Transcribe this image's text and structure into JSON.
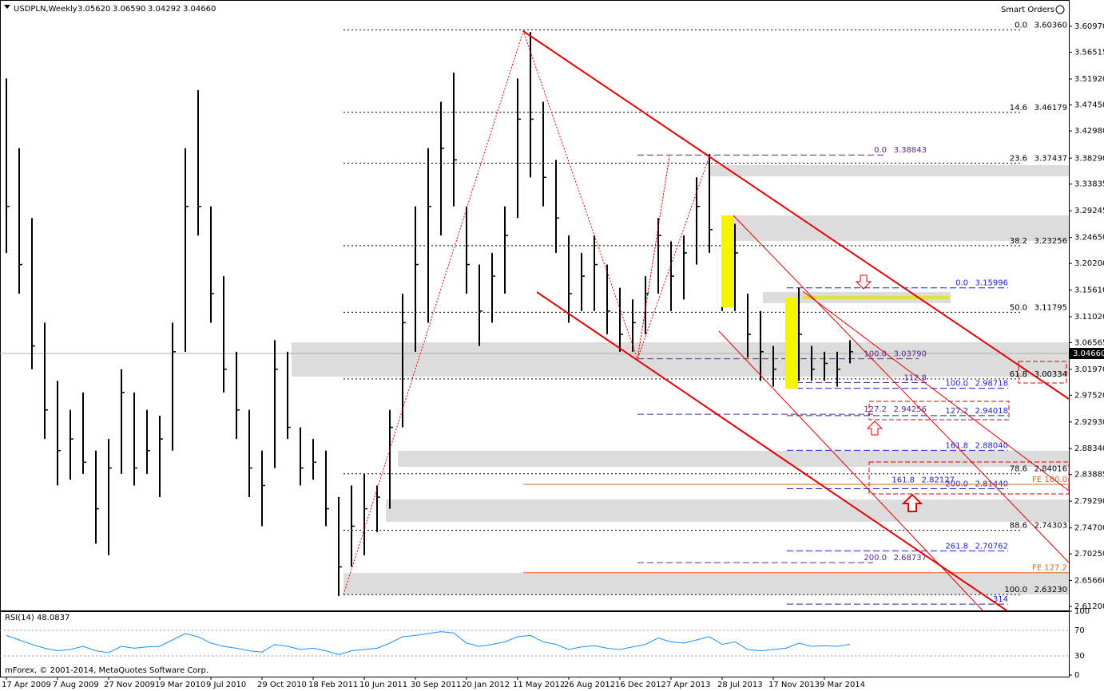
{
  "chart_data": {
    "type": "ohlc",
    "symbol": "USDPLN,Weekly",
    "ohlc_header": [
      {
        "value": 3.0562,
        "label": "3.05620"
      },
      {
        "value": 3.0659,
        "label": "3.06590"
      },
      3.04292,
      {
        "value": 3.0466,
        "label": "3.04660"
      }
    ],
    "smart_orders": "Smart Orders",
    "footer": "mForex, © 2001-2014, MetaQuotes Software Corp.",
    "last": {
      "value": 3.0466,
      "label": "3.04660"
    },
    "categories": [
      "17 Apr 2009",
      null,
      null,
      null,
      "7 Aug 2009",
      null,
      null,
      null,
      "27 Nov 2009",
      null,
      null,
      null,
      "19 Mar 2010",
      null,
      null,
      null,
      "9 Jul 2010",
      null,
      null,
      null,
      "29 Oct 2010",
      null,
      null,
      null,
      "18 Feb 2011",
      null,
      null,
      null,
      "10 Jun 2011",
      null,
      null,
      null,
      "30 Sep 2011",
      null,
      null,
      null,
      "20 Jan 2012",
      null,
      null,
      null,
      "11 May 2012",
      null,
      null,
      null,
      "26 Aug 2012",
      null,
      null,
      null,
      "16 Dec 2012",
      null,
      null,
      null,
      "7 Apr 2013",
      null,
      null,
      null,
      "28 Jul 2013",
      null,
      null,
      null,
      "17 Nov 2013",
      null,
      null,
      null,
      "9 Mar 2014",
      null,
      null
    ],
    "high": [
      3.52,
      3.4,
      3.28,
      3.1,
      3.0,
      2.95,
      2.98,
      2.88,
      2.9,
      3.02,
      2.98,
      2.95,
      2.94,
      3.1,
      3.4,
      3.5,
      3.3,
      3.18,
      3.05,
      2.95,
      2.88,
      3.07,
      3.05,
      2.92,
      2.9,
      2.88,
      2.8,
      2.82,
      2.84,
      2.82,
      2.95,
      3.15,
      3.3,
      3.4,
      3.48,
      3.53,
      3.3,
      3.2,
      3.22,
      3.3,
      3.52,
      3.6,
      3.48,
      3.38,
      3.25,
      3.22,
      3.25,
      3.2,
      3.16,
      3.14,
      3.18,
      3.28,
      3.24,
      3.25,
      3.35,
      3.39,
      3.25,
      3.27,
      3.15,
      3.12,
      3.06,
      3.06,
      3.16,
      3.06,
      3.05,
      3.05,
      3.07
    ],
    "low": [
      3.22,
      3.15,
      3.02,
      2.9,
      2.82,
      2.83,
      2.84,
      2.72,
      2.7,
      2.84,
      2.82,
      2.84,
      2.8,
      2.88,
      3.05,
      3.25,
      3.1,
      2.98,
      2.9,
      2.8,
      2.75,
      2.85,
      2.9,
      2.82,
      2.83,
      2.75,
      2.63,
      2.68,
      2.7,
      2.74,
      2.78,
      2.92,
      3.05,
      3.1,
      3.25,
      3.3,
      3.15,
      3.06,
      3.1,
      3.15,
      3.28,
      3.35,
      3.3,
      3.22,
      3.1,
      3.12,
      3.12,
      3.08,
      3.05,
      3.05,
      3.08,
      3.15,
      3.12,
      3.14,
      3.2,
      3.22,
      3.12,
      3.12,
      3.04,
      3.0,
      2.99,
      2.99,
      3.0,
      3.0,
      3.0,
      2.99,
      3.03
    ],
    "close": [
      3.3,
      3.2,
      3.06,
      2.95,
      2.88,
      2.9,
      2.86,
      2.78,
      2.85,
      2.98,
      2.85,
      2.88,
      2.9,
      3.05,
      3.3,
      3.3,
      3.15,
      3.02,
      2.95,
      2.85,
      2.82,
      3.02,
      2.92,
      2.85,
      2.86,
      2.78,
      2.68,
      2.75,
      2.78,
      2.8,
      2.92,
      3.1,
      3.2,
      3.3,
      3.4,
      3.38,
      3.2,
      3.12,
      3.18,
      3.25,
      3.45,
      3.45,
      3.35,
      3.28,
      3.15,
      3.18,
      3.2,
      3.12,
      3.08,
      3.1,
      3.15,
      3.25,
      3.18,
      3.22,
      3.3,
      3.26,
      3.15,
      3.22,
      3.08,
      3.05,
      3.02,
      3.04,
      3.08,
      3.02,
      3.03,
      3.02,
      3.05
    ],
    "ylim": [
      2.612,
      3.6097
    ],
    "yticks": [
      {
        "value": 3.6097,
        "label": "3.60970"
      },
      3.56515,
      {
        "value": 3.5192,
        "label": "3.51920"
      },
      {
        "value": 3.4745,
        "label": "3.47450"
      },
      {
        "value": 3.4298,
        "label": "3.42980"
      },
      {
        "value": 3.3829,
        "label": "3.38290"
      },
      3.33835,
      3.29245,
      {
        "value": 3.2465,
        "label": "3.24650"
      },
      {
        "value": 3.202,
        "label": "3.20200"
      },
      {
        "value": 3.1561,
        "label": "3.15610"
      },
      {
        "value": 3.1102,
        "label": "3.11020"
      },
      3.06565,
      {
        "value": 3.0197,
        "label": "3.01970"
      },
      {
        "value": 2.9752,
        "label": "2.97520"
      },
      {
        "value": 2.9293,
        "label": "2.92930"
      },
      {
        "value": 2.8834,
        "label": "2.88340"
      },
      2.83885,
      {
        "value": 2.7929,
        "label": "2.79290"
      },
      {
        "value": 2.747,
        "label": "2.74700"
      },
      {
        "value": 2.7025,
        "label": "2.70250"
      },
      {
        "value": 2.6566,
        "label": "2.65660"
      },
      {
        "value": 2.612,
        "label": "2.61200"
      }
    ],
    "levels": [
      {
        "color": "#000000",
        "items": [
          {
            "ratio": "0.0",
            "price": {
              "value": 3.6036,
              "label": "3.60360"
            }
          },
          {
            "ratio": "14.6",
            "price": 3.46179
          },
          {
            "ratio": "23.6",
            "price": 3.37437
          },
          {
            "ratio": "38.2",
            "price": 3.23256
          },
          {
            "ratio": "50.0",
            "price": 3.11795
          },
          {
            "ratio": "61.8",
            "price": 3.00334
          },
          {
            "ratio": "78.6",
            "price": 2.84016
          },
          {
            "ratio": "88.6",
            "price": 2.74303
          },
          {
            "ratio": "100.0",
            "price": {
              "value": 2.6323,
              "label": "2.63230"
            }
          }
        ]
      },
      {
        "color": "#5b2a8c",
        "items": [
          {
            "ratio": "0.0",
            "price": 3.38843
          },
          {
            "ratio": "100.0",
            "price": {
              "value": 3.0379,
              "label": "3.03790"
            }
          },
          {
            "ratio": "112.8",
            "at": 2.997
          },
          {
            "ratio": "127.2",
            "price": 2.94256
          },
          {
            "ratio": "200.0",
            "price": 2.68737
          }
        ]
      },
      {
        "color": "#1f1fc8",
        "items": [
          {
            "ratio": "0.0",
            "price": 3.15996
          },
          {
            "ratio": "100.0",
            "price": 2.98718
          },
          {
            "ratio": "127.2",
            "price": 2.94018
          },
          {
            "ratio": "161.8",
            "price": {
              "value": 2.8804,
              "label": "2.88040"
            }
          },
          {
            "ratio": "161.8",
            "price": 2.82127
          },
          {
            "ratio": "200.0",
            "price": {
              "value": 2.8144,
              "label": "2.81440"
            }
          },
          {
            "ratio": "261.8",
            "price": 2.70762
          },
          {
            "ratio": "314",
            "at": 2.616
          }
        ]
      },
      {
        "color": "#d2691e",
        "items": [
          {
            "ratio": "FE 100.0",
            "at": 2.822
          },
          {
            "ratio": "FE 127.2",
            "at": 2.67
          }
        ]
      }
    ],
    "rsi": {
      "label": "RSI(14) 48.0837",
      "ylim": [
        0,
        100
      ],
      "yticks": [
        100,
        70,
        30,
        0
      ],
      "values": [
        62,
        55,
        48,
        42,
        38,
        40,
        45,
        38,
        35,
        45,
        42,
        44,
        45,
        55,
        65,
        60,
        50,
        45,
        42,
        38,
        36,
        48,
        45,
        40,
        42,
        38,
        32,
        38,
        40,
        42,
        50,
        60,
        62,
        65,
        68,
        66,
        50,
        45,
        48,
        52,
        60,
        62,
        52,
        48,
        40,
        44,
        46,
        42,
        40,
        44,
        48,
        58,
        52,
        50,
        55,
        60,
        48,
        52,
        40,
        38,
        40,
        42,
        50,
        45,
        46,
        45,
        48.0837
      ]
    }
  }
}
